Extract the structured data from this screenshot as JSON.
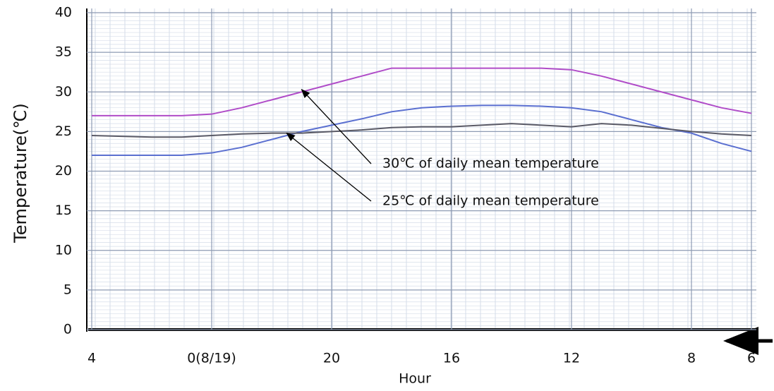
{
  "chart_data": {
    "type": "line",
    "y_label": "Temperature(℃)",
    "x_label": "Hour",
    "x": [
      28,
      27,
      26,
      25,
      24,
      23,
      22,
      21,
      20,
      19,
      18,
      17,
      16,
      15,
      14,
      13,
      12,
      11,
      10,
      9,
      8,
      7,
      6
    ],
    "xlim": [
      28,
      6
    ],
    "xticks": [
      {
        "value": 28,
        "label": "4"
      },
      {
        "value": 24,
        "label": "0(8/19)"
      },
      20,
      16,
      12,
      8,
      6
    ],
    "ylim": [
      0,
      40
    ],
    "yticks": [
      0,
      5,
      10,
      15,
      20,
      25,
      30,
      35,
      40
    ],
    "grid": true,
    "series": [
      {
        "color": "#b04cc8",
        "values": [
          27,
          27,
          27,
          27,
          27.2,
          28,
          29,
          30,
          31,
          32,
          33,
          33,
          33,
          33,
          33,
          33,
          32.8,
          32,
          31,
          30,
          29,
          28,
          27.3
        ]
      },
      {
        "color": "#5a6fd0",
        "values": [
          22,
          22,
          22,
          22,
          22.3,
          23,
          24,
          25,
          25.8,
          26.6,
          27.5,
          28,
          28.2,
          28.3,
          28.3,
          28.2,
          28,
          27.5,
          26.5,
          25.5,
          24.8,
          23.5,
          22.5
        ]
      },
      {
        "color": "#5a5a66",
        "values": [
          24.5,
          24.4,
          24.3,
          24.3,
          24.5,
          24.7,
          24.8,
          24.8,
          25,
          25.2,
          25.5,
          25.6,
          25.6,
          25.8,
          26,
          25.8,
          25.6,
          26,
          25.8,
          25.4,
          25,
          24.7,
          24.5
        ]
      }
    ],
    "annotations": [
      {
        "text": "30℃ of daily mean temperature",
        "x": 21,
        "y": 30.3
      },
      {
        "text": "25℃ of daily mean temperature",
        "x": 21.5,
        "y": 24.8
      }
    ]
  }
}
